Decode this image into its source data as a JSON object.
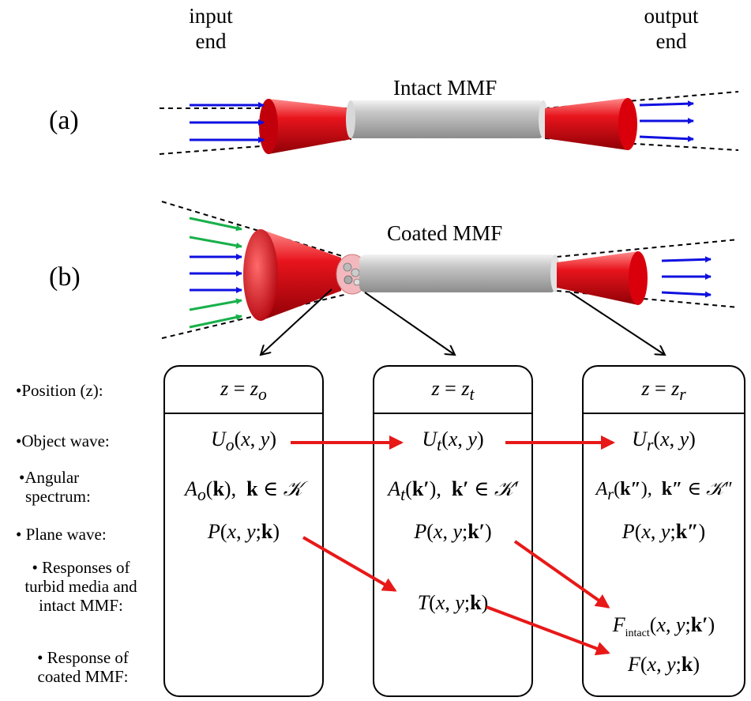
{
  "ends": {
    "input_line1": "input",
    "input_line2": "end",
    "output_line1": "output",
    "output_line2": "end"
  },
  "panels": {
    "a": "(a)",
    "b": "(b)"
  },
  "fibers": {
    "a_label": "Intact MMF",
    "b_label": "Coated MMF"
  },
  "rows": {
    "position": "•Position (z):",
    "object_wave": "•Object wave:",
    "angular_1": "•Angular",
    "angular_2": "spectrum:",
    "plane_wave": "• Plane wave:",
    "responses_1": "• Responses of",
    "responses_2": "turbid media and",
    "responses_3": "intact MMF:",
    "response_1": "• Response of",
    "response_2": "coated MMF:"
  },
  "columns": {
    "c1": {
      "position": "z = z_o",
      "object_wave": "U_o(x, y)",
      "angular": "A_o(k),  k ∈ 𝒦",
      "plane_wave": "P(x, y;k)"
    },
    "c2": {
      "position": "z = z_t",
      "object_wave": "U_t(x, y)",
      "angular": "A_t(k′),  k′ ∈ 𝒦′",
      "plane_wave": "P(x, y;k′)",
      "response": "T(x, y;k)"
    },
    "c3": {
      "position": "z = z_r",
      "object_wave": "U_r(x, y)",
      "angular": "A_r(k″),  k″ ∈ 𝒦″",
      "plane_wave": "P(x, y;k″)",
      "response_intact": "F_intact(x, y;k′)",
      "response_coated": "F(x, y;k)"
    }
  },
  "colors": {
    "cone_red": "#e8141c",
    "cone_dark": "#a30008",
    "fiber_gray": "#b9b9b9",
    "arrow_blue": "#1010e0",
    "arrow_green": "#18b04a",
    "arrow_red": "#e81818"
  }
}
